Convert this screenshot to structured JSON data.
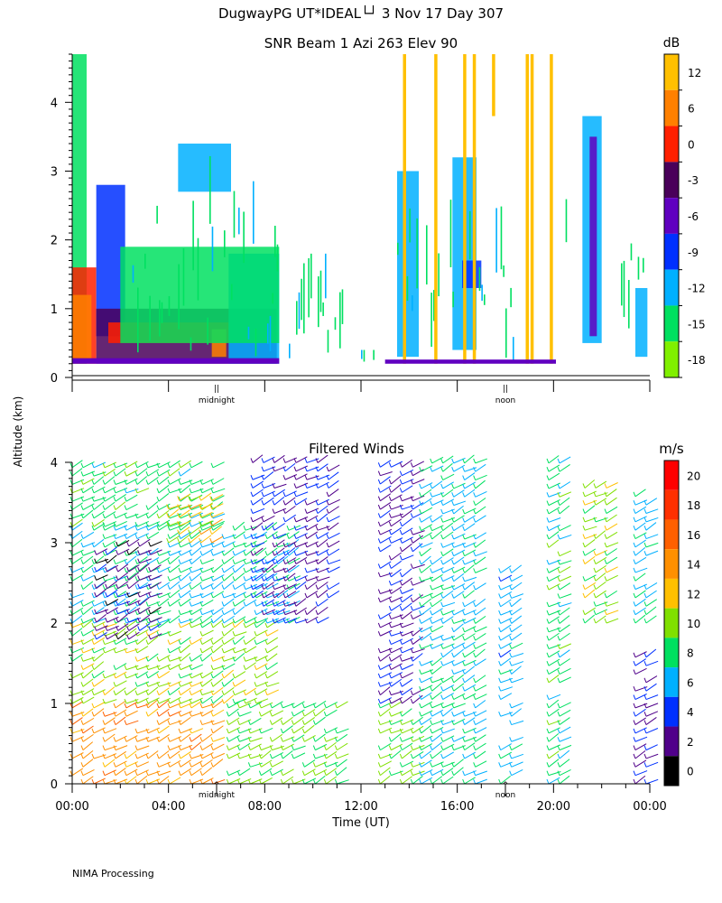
{
  "header": {
    "title": "DugwayPG UT*IDEAL└┘   3 Nov 17 Day 307"
  },
  "shared": {
    "ylabel": "Altitude (km)",
    "xlabel": "Time (UT)",
    "footer": "NIMA Processing",
    "x_ticks": [
      "00:00",
      "04:00",
      "08:00",
      "12:00",
      "16:00",
      "20:00",
      "00:00"
    ],
    "markers": [
      "midnight",
      "noon"
    ]
  },
  "chart_data": [
    {
      "type": "heatmap",
      "title": "SNR Beam 1 Azi 263 Elev 90",
      "ylabel": "Altitude (km)",
      "xlabel": "",
      "y_ticks": [
        0,
        1,
        2,
        3,
        4
      ],
      "ylim": [
        0,
        4.7
      ],
      "xlim_hours": [
        0,
        24
      ],
      "colorbar": {
        "unit": "dB",
        "labels": [
          "12",
          "6",
          "0",
          "-3",
          "-6",
          "-9",
          "-12",
          "-15",
          "-18"
        ],
        "colors": [
          "#ffc000",
          "#ff8000",
          "#ff2000",
          "#4a005a",
          "#6000c0",
          "#0030ff",
          "#00b0ff",
          "#00e060",
          "#80f000"
        ]
      },
      "markers": [
        {
          "label": "midnight",
          "hour": 6
        },
        {
          "label": "noon",
          "hour": 18
        }
      ],
      "regions": [
        {
          "t": [
            0.0,
            0.6
          ],
          "alt": [
            0.2,
            4.7
          ],
          "snr": -15
        },
        {
          "t": [
            0.0,
            1.0
          ],
          "alt": [
            0.2,
            1.6
          ],
          "snr": 0
        },
        {
          "t": [
            0.0,
            0.8
          ],
          "alt": [
            0.25,
            1.2
          ],
          "snr": 6
        },
        {
          "t": [
            1.0,
            2.2
          ],
          "alt": [
            0.6,
            2.8
          ],
          "snr": -9
        },
        {
          "t": [
            1.0,
            8.5
          ],
          "alt": [
            0.2,
            1.0
          ],
          "snr": -3
        },
        {
          "t": [
            1.5,
            6.5
          ],
          "alt": [
            0.5,
            0.8
          ],
          "snr": 0
        },
        {
          "t": [
            5.8,
            6.4
          ],
          "alt": [
            0.3,
            0.7
          ],
          "snr": 6
        },
        {
          "t": [
            6.5,
            8.6
          ],
          "alt": [
            0.2,
            1.8
          ],
          "snr": -12
        },
        {
          "t": [
            2.0,
            8.6
          ],
          "alt": [
            0.5,
            1.9
          ],
          "snr": -15
        },
        {
          "t": [
            4.4,
            6.6
          ],
          "alt": [
            2.7,
            3.4
          ],
          "snr": -12
        },
        {
          "t": [
            13.5,
            14.4
          ],
          "alt": [
            0.3,
            3.0
          ],
          "snr": -12
        },
        {
          "t": [
            15.8,
            16.8
          ],
          "alt": [
            0.4,
            3.2
          ],
          "snr": -12
        },
        {
          "t": [
            16.2,
            17.0
          ],
          "alt": [
            1.3,
            1.7
          ],
          "snr": -9
        },
        {
          "t": [
            21.2,
            22.0
          ],
          "alt": [
            0.5,
            3.8
          ],
          "snr": -12
        },
        {
          "t": [
            21.5,
            21.8
          ],
          "alt": [
            0.6,
            3.5
          ],
          "snr": -6
        },
        {
          "t": [
            23.4,
            23.9
          ],
          "alt": [
            0.3,
            1.3
          ],
          "snr": -12
        }
      ],
      "columns": [
        {
          "t": 13.8,
          "alt": [
            0.2,
            4.7
          ],
          "snr": 12
        },
        {
          "t": 15.1,
          "alt": [
            0.2,
            4.7
          ],
          "snr": 12
        },
        {
          "t": 16.3,
          "alt": [
            0.2,
            4.7
          ],
          "snr": 12
        },
        {
          "t": 16.7,
          "alt": [
            0.2,
            4.7
          ],
          "snr": 12
        },
        {
          "t": 17.5,
          "alt": [
            3.8,
            4.7
          ],
          "snr": 12
        },
        {
          "t": 18.9,
          "alt": [
            0.2,
            4.7
          ],
          "snr": 12
        },
        {
          "t": 19.1,
          "alt": [
            0.2,
            4.7
          ],
          "snr": 12
        },
        {
          "t": 19.9,
          "alt": [
            0.2,
            4.7
          ],
          "snr": 12
        }
      ]
    },
    {
      "type": "scatter",
      "title": "Filtered Winds",
      "ylabel": "Altitude (km)",
      "xlabel": "Time (UT)",
      "y_ticks": [
        0,
        1,
        2,
        3,
        4
      ],
      "ylim": [
        0,
        4.0
      ],
      "xlim_hours": [
        0,
        24
      ],
      "colorbar": {
        "unit": "m/s",
        "labels": [
          "20",
          "18",
          "16",
          "14",
          "12",
          "10",
          "8",
          "6",
          "4",
          "2",
          "0"
        ],
        "colors": [
          "#ff0000",
          "#ff3000",
          "#ff6000",
          "#ff9000",
          "#ffc000",
          "#80e000",
          "#00e060",
          "#00b0ff",
          "#0030ff",
          "#50008a",
          "#000000"
        ]
      },
      "markers": [
        {
          "label": "midnight",
          "hour": 6
        },
        {
          "label": "noon",
          "hour": 18
        }
      ],
      "wind_segments": [
        {
          "t": [
            0.0,
            6.2
          ],
          "alt": [
            0.0,
            1.0
          ],
          "speed": 14
        },
        {
          "t": [
            0.0,
            8.5
          ],
          "alt": [
            1.0,
            2.0
          ],
          "speed": 10
        },
        {
          "t": [
            0.0,
            9.0
          ],
          "alt": [
            2.0,
            3.2
          ],
          "speed": 7
        },
        {
          "t": [
            0.0,
            6.0
          ],
          "alt": [
            3.2,
            4.0
          ],
          "speed": 8
        },
        {
          "t": [
            1.0,
            3.5
          ],
          "alt": [
            1.8,
            3.0
          ],
          "speed": 2
        },
        {
          "t": [
            4.0,
            6.0
          ],
          "alt": [
            3.0,
            3.6
          ],
          "speed": 12
        },
        {
          "t": [
            6.5,
            11.0
          ],
          "alt": [
            0.0,
            1.0
          ],
          "speed": 9
        },
        {
          "t": [
            7.5,
            11.0
          ],
          "alt": [
            2.0,
            4.0
          ],
          "speed": 3
        },
        {
          "t": [
            12.8,
            14.5
          ],
          "alt": [
            0.0,
            1.0
          ],
          "speed": 9
        },
        {
          "t": [
            12.8,
            14.5
          ],
          "alt": [
            1.0,
            4.0
          ],
          "speed": 3
        },
        {
          "t": [
            14.5,
            17.0
          ],
          "alt": [
            0.0,
            4.0
          ],
          "speed": 7
        },
        {
          "t": [
            17.8,
            18.6
          ],
          "alt": [
            0.0,
            2.7
          ],
          "speed": 6
        },
        {
          "t": [
            19.8,
            20.4
          ],
          "alt": [
            0.0,
            4.0
          ],
          "speed": 8
        },
        {
          "t": [
            21.3,
            22.2
          ],
          "alt": [
            2.0,
            3.7
          ],
          "speed": 10
        },
        {
          "t": [
            23.4,
            24.0
          ],
          "alt": [
            0.0,
            1.6
          ],
          "speed": 3
        },
        {
          "t": [
            23.4,
            24.0
          ],
          "alt": [
            2.0,
            3.6
          ],
          "speed": 7
        }
      ]
    }
  ]
}
